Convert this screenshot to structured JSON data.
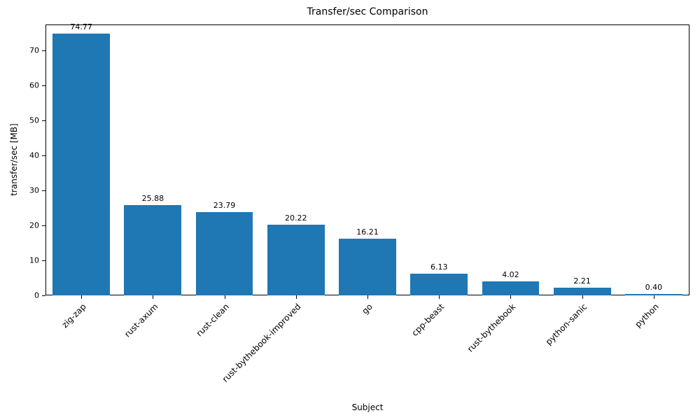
{
  "chart_data": {
    "type": "bar",
    "title": "Transfer/sec Comparison",
    "xlabel": "Subject",
    "ylabel": "transfer/sec [MB]",
    "categories": [
      "zig-zap",
      "rust-axum",
      "rust-clean",
      "rust-bythebook-improved",
      "go",
      "cpp-beast",
      "rust-bythebook",
      "python-sanic",
      "python"
    ],
    "values": [
      74.77,
      25.88,
      23.79,
      20.22,
      16.21,
      6.13,
      4.02,
      2.21,
      0.4
    ],
    "value_labels": [
      "74.77",
      "25.88",
      "23.79",
      "20.22",
      "16.21",
      "6.13",
      "4.02",
      "2.21",
      "0.40"
    ],
    "yticks": [
      0,
      10,
      20,
      30,
      40,
      50,
      60,
      70
    ],
    "ylim": [
      0,
      77.4
    ],
    "bar_color": "#1f77b4",
    "grid": false,
    "legend": null
  }
}
